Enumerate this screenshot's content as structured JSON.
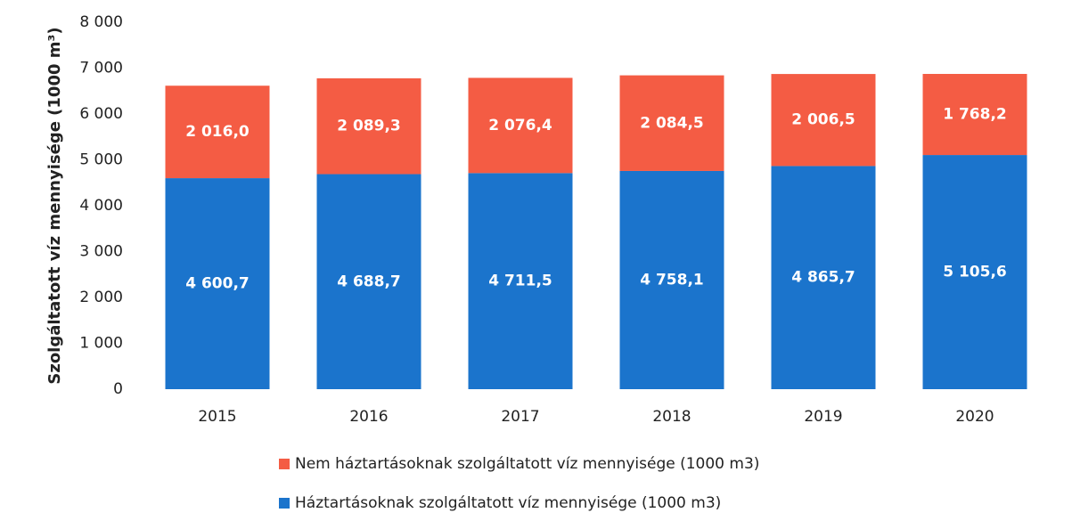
{
  "chart_data": {
    "type": "stacked_bar",
    "y_label": "Szolgáltatott víz mennyisége (1000 m³)",
    "categories": [
      "2015",
      "2016",
      "2017",
      "2018",
      "2019",
      "2020"
    ],
    "series": [
      {
        "name": "Háztartásoknak szolgáltatott víz mennyisége (1000 m3)",
        "color": "#1b74cc",
        "values": [
          4600.7,
          4688.7,
          4711.5,
          4758.1,
          4865.7,
          5105.6
        ],
        "value_labels": [
          "4 600,7",
          "4 688,7",
          "4 711,5",
          "4 758,1",
          "4 865,7",
          "5 105,6"
        ]
      },
      {
        "name": "Nem háztartásoknak szolgáltatott víz mennyisége (1000 m3)",
        "color": "#f45c44",
        "values": [
          2016.0,
          2089.3,
          2076.4,
          2084.5,
          2006.5,
          1768.2
        ],
        "value_labels": [
          "2 016,0",
          "2 089,3",
          "2 076,4",
          "2 084,5",
          "2 006,5",
          "1 768,2"
        ]
      }
    ],
    "ylim": [
      0,
      8000
    ],
    "yticks": [
      0,
      {
        "value": 1000,
        "label": "1 000"
      },
      {
        "value": 2000,
        "label": "2 000"
      },
      {
        "value": 3000,
        "label": "3 000"
      },
      {
        "value": 4000,
        "label": "4 000"
      },
      {
        "value": 5000,
        "label": "5 000"
      },
      {
        "value": 6000,
        "label": "6 000"
      },
      {
        "value": 7000,
        "label": "7 000"
      },
      {
        "value": 8000,
        "label": "8 000"
      }
    ],
    "grid": false,
    "legend": "bottom"
  }
}
